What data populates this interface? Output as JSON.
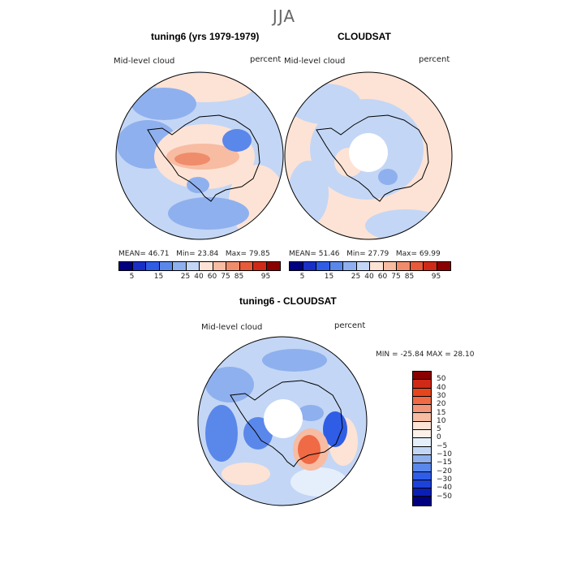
{
  "season": "JJA",
  "colors": {
    "abs_scale": [
      "#000080",
      "#1a2fc7",
      "#2f5de6",
      "#5a87ea",
      "#8fb0ee",
      "#c3d6f5",
      "#fde3d5",
      "#f7bca2",
      "#ef8c6b",
      "#e75a3a",
      "#cf2a17",
      "#8b0000"
    ],
    "diff_scale": [
      "#000080",
      "#0b1fb5",
      "#1d42d8",
      "#2f5de6",
      "#5a87ea",
      "#8fb0ee",
      "#c3d6f5",
      "#e5eefb",
      "#fdf0e8",
      "#fde3d5",
      "#f7bca2",
      "#f29478",
      "#ef6a45",
      "#e7461d",
      "#cf2a17",
      "#8b0000"
    ],
    "coast": "#000000"
  },
  "chart_data": [
    {
      "type": "heatmap",
      "projection": "south-polar-stereographic",
      "title": "tuning6 (yrs 1979-1979)",
      "field_label": "Mid-level cloud",
      "units": "percent",
      "stats": {
        "mean_label": "MEAN=",
        "mean": "46.71",
        "min_label": "Min=",
        "min": "23.84",
        "max_label": "Max=",
        "max": "79.85"
      },
      "colorbar_ticks": [
        "5",
        "15",
        "25",
        "40",
        "60",
        "75",
        "85",
        "95"
      ],
      "description_values": {
        "background_class": 40,
        "peak_class": 85
      }
    },
    {
      "type": "heatmap",
      "projection": "south-polar-stereographic",
      "title": "CLOUDSAT",
      "field_label": "Mid-level cloud",
      "units": "percent",
      "stats": {
        "mean_label": "MEAN=",
        "mean": "51.46",
        "min_label": "Min=",
        "min": "27.79",
        "max_label": "Max=",
        "max": "69.99"
      },
      "colorbar_ticks": [
        "5",
        "15",
        "25",
        "40",
        "60",
        "75",
        "85",
        "95"
      ],
      "description_values": {
        "background_class": 60,
        "peak_class": 75
      }
    },
    {
      "type": "heatmap",
      "projection": "south-polar-stereographic",
      "title": "tuning6 - CLOUDSAT",
      "field_label": "Mid-level cloud",
      "units": "percent",
      "stats": {
        "min_label": "MIN =",
        "min": "-25.84",
        "max_label": "MAX =",
        "max": "28.10"
      },
      "colorbar_ticks": [
        "50",
        "40",
        "30",
        "20",
        "15",
        "10",
        "5",
        "0",
        "−5",
        "−10",
        "−15",
        "−20",
        "−30",
        "−40",
        "−50"
      ]
    }
  ]
}
